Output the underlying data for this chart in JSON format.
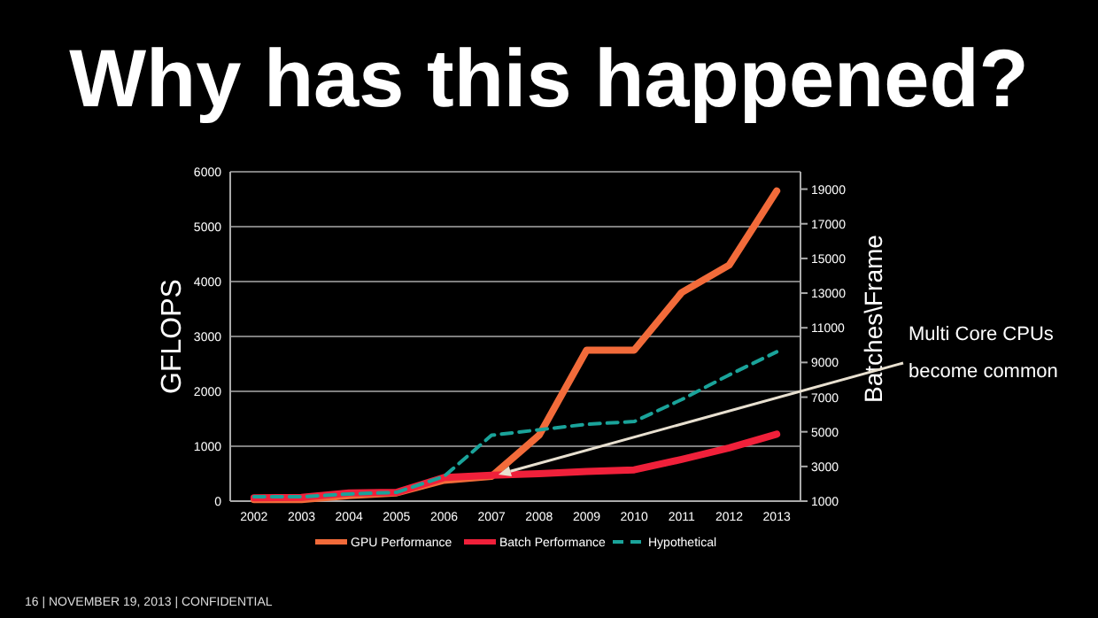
{
  "chart_data": {
    "type": "line",
    "title": "Why has this happened?",
    "ylabel": "GFLOPS",
    "y2label": "Batches\\Frame",
    "categories": [
      "2002",
      "2003",
      "2004",
      "2005",
      "2006",
      "2007",
      "2008",
      "2009",
      "2010",
      "2011",
      "2012",
      "2013"
    ],
    "series": [
      {
        "name": "GPU Performance",
        "color": "#f26b3a",
        "values": [
          30,
          30,
          100,
          150,
          380,
          450,
          1200,
          2750,
          2750,
          3800,
          4300,
          5650
        ]
      },
      {
        "name": "Batch Performance",
        "color": "#f0203a",
        "values": [
          60,
          70,
          150,
          160,
          430,
          470,
          500,
          540,
          570,
          760,
          970,
          1220
        ]
      },
      {
        "name": "Hypothetical",
        "color": "#1aa39a",
        "line_style": "dashed",
        "values": [
          80,
          80,
          130,
          160,
          450,
          1200,
          1300,
          1400,
          1450,
          1850,
          2300,
          2720
        ]
      }
    ],
    "ylim": [
      0,
      6000
    ],
    "yticks": [
      0,
      1000,
      2000,
      3000,
      4000,
      5000,
      6000
    ],
    "y2lim": [
      1000,
      20000
    ],
    "y2ticks": [
      1000,
      3000,
      5000,
      7000,
      9000,
      11000,
      13000,
      15000,
      17000,
      19000
    ],
    "grid": "y",
    "legend": "bottom",
    "annotations": [
      "Multi Core CPUs become common",
      "16 | NOVEMBER 19, 2013 | CONFIDENTIAL"
    ]
  }
}
